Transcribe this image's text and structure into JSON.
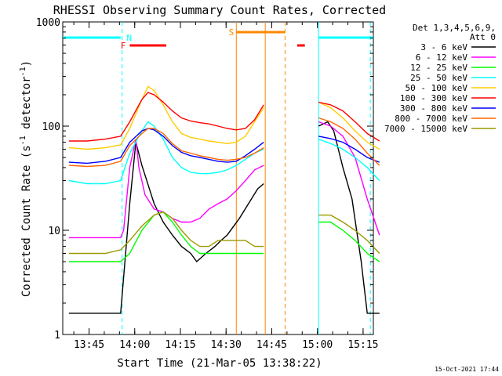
{
  "chart_data": {
    "type": "line",
    "title": "RHESSI Observing Summary Count Rates, Corrected",
    "xlabel": "Start Time (21-Mar-05 13:38:22)",
    "ylabel_main": "Corrected Count Rate (s",
    "ylabel_sup1": "-1",
    "ylabel_mid": " detector",
    "ylabel_sup2": "-1",
    "ylabel_end": ")",
    "yscale": "log",
    "ylim": [
      1,
      1000
    ],
    "xlim_minutes": [
      -2,
      100
    ],
    "x_ticks": [
      "13:45",
      "14:00",
      "14:15",
      "14:30",
      "14:45",
      "15:00",
      "15:15"
    ],
    "y_ticks": [
      "1",
      "10",
      "100",
      "1000"
    ],
    "legend_header": [
      "Det 1,3,4,5,6,9,",
      "Att 0"
    ],
    "footer_date": "15-Oct-2021 17:44",
    "annotations": {
      "night_label": "N",
      "flare_label": "F",
      "saa_label": "S"
    },
    "series": [
      {
        "name": "3 - 6 keV",
        "color": "#000000",
        "data": [
          [
            0,
            1.6
          ],
          [
            6,
            1.6
          ],
          [
            12,
            1.6
          ],
          [
            17,
            1.6
          ],
          [
            20,
            18
          ],
          [
            22,
            70
          ],
          [
            24,
            42
          ],
          [
            28,
            18
          ],
          [
            31,
            12
          ],
          [
            34,
            9
          ],
          [
            37,
            7
          ],
          [
            40,
            6
          ],
          [
            42,
            5
          ],
          [
            45,
            6
          ],
          [
            48,
            7
          ],
          [
            50,
            8
          ],
          [
            52,
            9
          ],
          [
            56,
            13
          ],
          [
            59,
            18
          ],
          [
            62,
            25
          ],
          [
            64,
            28
          ],
          [
            82,
            100
          ],
          [
            85,
            110
          ],
          [
            87,
            90
          ],
          [
            90,
            40
          ],
          [
            93,
            20
          ],
          [
            96,
            5
          ],
          [
            98,
            1.6
          ],
          [
            102,
            1.6
          ]
        ]
      },
      {
        "name": "6 - 12 keV",
        "color": "#ff00ff",
        "data": [
          [
            0,
            8.5
          ],
          [
            6,
            8.5
          ],
          [
            12,
            8.5
          ],
          [
            17,
            8.5
          ],
          [
            18,
            10
          ],
          [
            20,
            40
          ],
          [
            22,
            75
          ],
          [
            23,
            40
          ],
          [
            25,
            22
          ],
          [
            28,
            16
          ],
          [
            31,
            15
          ],
          [
            34,
            13
          ],
          [
            37,
            12
          ],
          [
            40,
            12
          ],
          [
            43,
            13
          ],
          [
            46,
            16
          ],
          [
            49,
            18
          ],
          [
            52,
            20
          ],
          [
            55,
            24
          ],
          [
            58,
            30
          ],
          [
            61,
            38
          ],
          [
            64,
            42
          ],
          [
            82,
            110
          ],
          [
            86,
            100
          ],
          [
            90,
            80
          ],
          [
            94,
            50
          ],
          [
            98,
            20
          ],
          [
            102,
            9
          ]
        ]
      },
      {
        "name": "12 - 25 keV",
        "color": "#00ff00",
        "data": [
          [
            0,
            5
          ],
          [
            6,
            5
          ],
          [
            12,
            5
          ],
          [
            17,
            5
          ],
          [
            20,
            6
          ],
          [
            24,
            10
          ],
          [
            28,
            14
          ],
          [
            31,
            15
          ],
          [
            34,
            12
          ],
          [
            37,
            9
          ],
          [
            40,
            7
          ],
          [
            43,
            6
          ],
          [
            46,
            6
          ],
          [
            49,
            6
          ],
          [
            52,
            6
          ],
          [
            55,
            6
          ],
          [
            58,
            6
          ],
          [
            61,
            6
          ],
          [
            64,
            6
          ],
          [
            82,
            12
          ],
          [
            86,
            12
          ],
          [
            90,
            10
          ],
          [
            94,
            8
          ],
          [
            98,
            6
          ],
          [
            102,
            5
          ]
        ]
      },
      {
        "name": "25 - 50 keV",
        "color": "#00ffff",
        "data": [
          [
            0,
            30
          ],
          [
            6,
            28
          ],
          [
            12,
            28
          ],
          [
            17,
            30
          ],
          [
            20,
            55
          ],
          [
            24,
            90
          ],
          [
            26,
            110
          ],
          [
            28,
            100
          ],
          [
            31,
            75
          ],
          [
            34,
            50
          ],
          [
            37,
            40
          ],
          [
            40,
            36
          ],
          [
            43,
            35
          ],
          [
            46,
            35
          ],
          [
            49,
            36
          ],
          [
            52,
            38
          ],
          [
            55,
            42
          ],
          [
            58,
            48
          ],
          [
            61,
            55
          ],
          [
            64,
            60
          ],
          [
            82,
            75
          ],
          [
            86,
            68
          ],
          [
            90,
            60
          ],
          [
            94,
            50
          ],
          [
            98,
            40
          ],
          [
            102,
            30
          ]
        ]
      },
      {
        "name": "50 - 100 keV",
        "color": "#ffcc00",
        "data": [
          [
            0,
            62
          ],
          [
            6,
            60
          ],
          [
            12,
            62
          ],
          [
            17,
            66
          ],
          [
            20,
            95
          ],
          [
            24,
            180
          ],
          [
            26,
            240
          ],
          [
            28,
            220
          ],
          [
            31,
            160
          ],
          [
            34,
            110
          ],
          [
            37,
            85
          ],
          [
            40,
            78
          ],
          [
            43,
            75
          ],
          [
            46,
            72
          ],
          [
            49,
            70
          ],
          [
            52,
            68
          ],
          [
            55,
            70
          ],
          [
            58,
            80
          ],
          [
            61,
            110
          ],
          [
            64,
            150
          ],
          [
            82,
            170
          ],
          [
            86,
            150
          ],
          [
            90,
            120
          ],
          [
            94,
            90
          ],
          [
            98,
            70
          ],
          [
            102,
            60
          ]
        ]
      },
      {
        "name": "100 - 300 keV",
        "color": "#ff0000",
        "data": [
          [
            0,
            72
          ],
          [
            6,
            72
          ],
          [
            12,
            75
          ],
          [
            17,
            80
          ],
          [
            20,
            110
          ],
          [
            24,
            180
          ],
          [
            26,
            210
          ],
          [
            28,
            200
          ],
          [
            31,
            170
          ],
          [
            34,
            140
          ],
          [
            37,
            120
          ],
          [
            40,
            112
          ],
          [
            43,
            108
          ],
          [
            46,
            105
          ],
          [
            49,
            100
          ],
          [
            52,
            95
          ],
          [
            55,
            92
          ],
          [
            58,
            95
          ],
          [
            61,
            115
          ],
          [
            64,
            160
          ],
          [
            82,
            170
          ],
          [
            86,
            160
          ],
          [
            90,
            140
          ],
          [
            94,
            110
          ],
          [
            98,
            85
          ],
          [
            102,
            72
          ]
        ]
      },
      {
        "name": "300 - 800 keV",
        "color": "#0000ff",
        "data": [
          [
            0,
            45
          ],
          [
            6,
            44
          ],
          [
            12,
            46
          ],
          [
            17,
            50
          ],
          [
            20,
            70
          ],
          [
            24,
            90
          ],
          [
            26,
            95
          ],
          [
            28,
            92
          ],
          [
            31,
            80
          ],
          [
            34,
            65
          ],
          [
            37,
            56
          ],
          [
            40,
            52
          ],
          [
            43,
            50
          ],
          [
            46,
            48
          ],
          [
            49,
            46
          ],
          [
            52,
            45
          ],
          [
            55,
            46
          ],
          [
            58,
            52
          ],
          [
            61,
            60
          ],
          [
            64,
            70
          ],
          [
            82,
            80
          ],
          [
            86,
            76
          ],
          [
            90,
            70
          ],
          [
            94,
            60
          ],
          [
            98,
            50
          ],
          [
            102,
            45
          ]
        ]
      },
      {
        "name": "800 - 7000 keV",
        "color": "#ff6600",
        "data": [
          [
            0,
            42
          ],
          [
            6,
            41
          ],
          [
            12,
            42
          ],
          [
            17,
            46
          ],
          [
            20,
            65
          ],
          [
            24,
            85
          ],
          [
            26,
            95
          ],
          [
            28,
            95
          ],
          [
            31,
            85
          ],
          [
            34,
            68
          ],
          [
            37,
            58
          ],
          [
            40,
            55
          ],
          [
            43,
            52
          ],
          [
            46,
            50
          ],
          [
            49,
            48
          ],
          [
            52,
            47
          ],
          [
            55,
            48
          ],
          [
            58,
            50
          ],
          [
            61,
            55
          ],
          [
            64,
            62
          ],
          [
            82,
            120
          ],
          [
            86,
            110
          ],
          [
            90,
            95
          ],
          [
            94,
            75
          ],
          [
            98,
            55
          ],
          [
            102,
            42
          ]
        ]
      },
      {
        "name": "7000 - 15000 keV",
        "color": "#999900",
        "data": [
          [
            0,
            6
          ],
          [
            6,
            6
          ],
          [
            12,
            6
          ],
          [
            17,
            6.5
          ],
          [
            20,
            8
          ],
          [
            24,
            11
          ],
          [
            28,
            14
          ],
          [
            31,
            15
          ],
          [
            34,
            13
          ],
          [
            37,
            10
          ],
          [
            40,
            8
          ],
          [
            43,
            7
          ],
          [
            46,
            7
          ],
          [
            49,
            8
          ],
          [
            52,
            8
          ],
          [
            55,
            8
          ],
          [
            58,
            8
          ],
          [
            61,
            7
          ],
          [
            64,
            7
          ],
          [
            82,
            14
          ],
          [
            86,
            14
          ],
          [
            90,
            12
          ],
          [
            94,
            10
          ],
          [
            98,
            8
          ],
          [
            102,
            6
          ]
        ]
      }
    ]
  }
}
